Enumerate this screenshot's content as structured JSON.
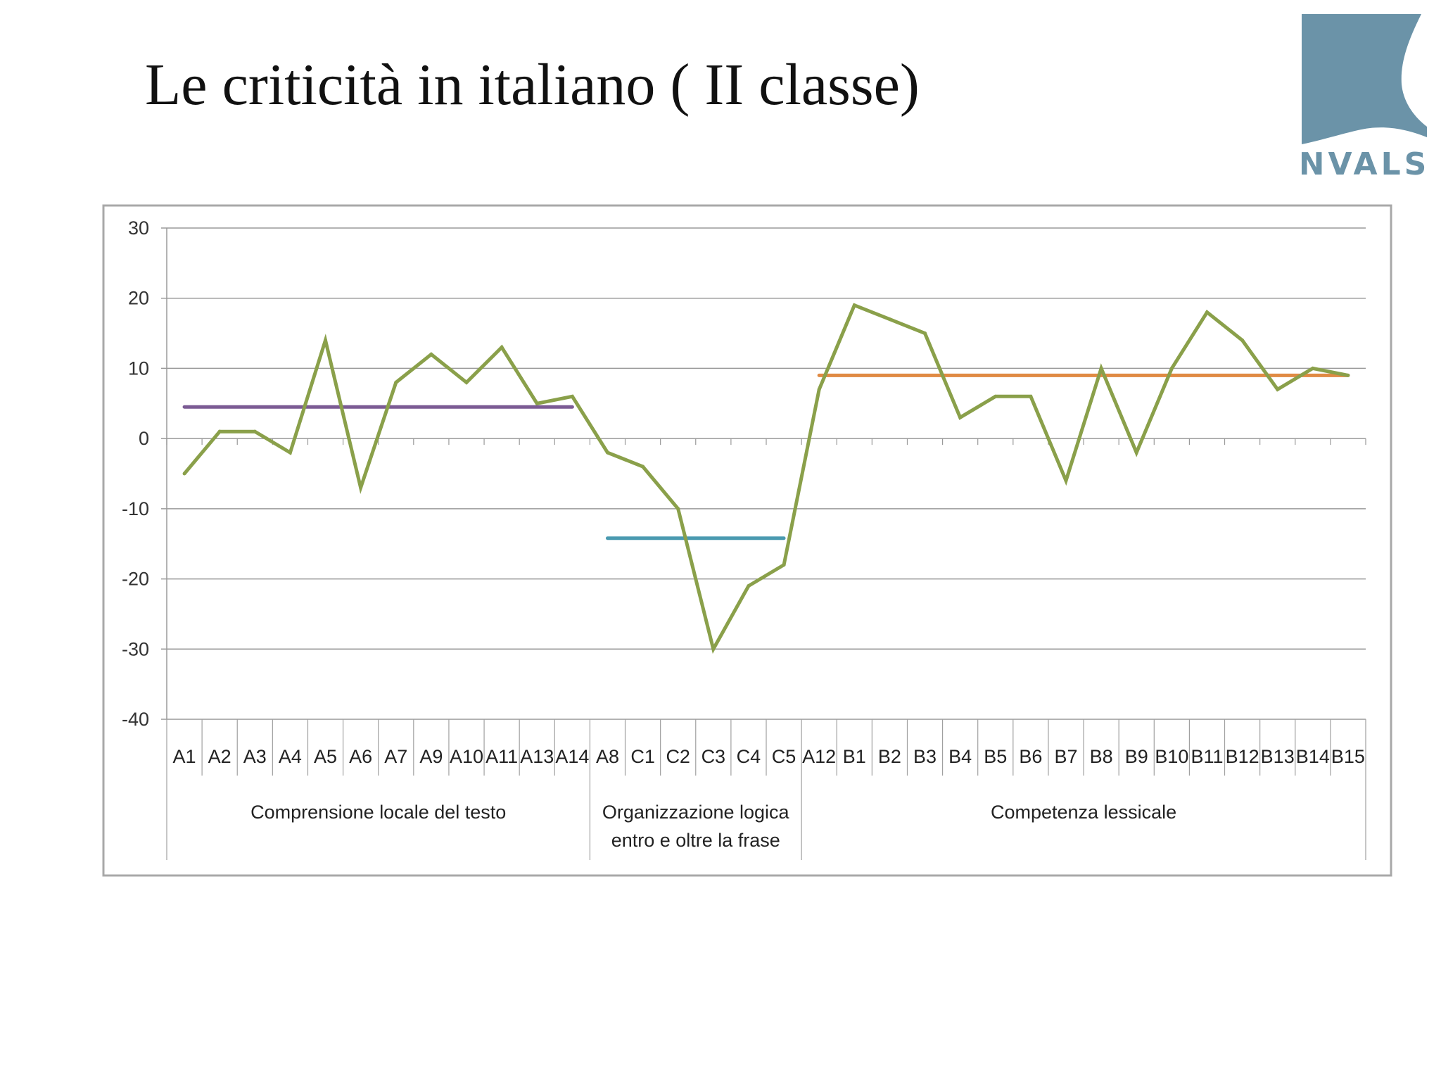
{
  "slide": {
    "title": "Le criticità in italiano ( II classe)",
    "logo_text": "INVALSI"
  },
  "colors": {
    "series": "#8aa04a",
    "mean_comprensione": "#7b5b94",
    "mean_organizzazione": "#4a9ab0",
    "mean_lessicale": "#e08a43",
    "logo": "#6b93a8",
    "grid": "#9a9a9a"
  },
  "chart_data": {
    "type": "line",
    "ylim": [
      -40,
      30
    ],
    "yticks": [
      30,
      20,
      10,
      0,
      -10,
      -20,
      -30,
      -40
    ],
    "grid": true,
    "categories": [
      "A1",
      "A2",
      "A3",
      "A4",
      "A5",
      "A6",
      "A7",
      "A9",
      "A10",
      "A11",
      "A13",
      "A14",
      "A8",
      "C1",
      "C2",
      "C3",
      "C4",
      "C5",
      "A12",
      "B1",
      "B2",
      "B3",
      "B4",
      "B5",
      "B6",
      "B7",
      "B8",
      "B9",
      "B10",
      "B11",
      "B12",
      "B13",
      "B14",
      "B15"
    ],
    "series": [
      {
        "values": [
          -5,
          1,
          1,
          -2,
          14,
          -7,
          8,
          12,
          8,
          13,
          5,
          6,
          -2,
          -4,
          -10,
          -30,
          -21,
          -18,
          7,
          19,
          17,
          15,
          3,
          6,
          6,
          -6,
          10,
          -2,
          10,
          18,
          14,
          7,
          10,
          9
        ]
      }
    ],
    "groups": [
      {
        "label_lines": [
          "Comprensione locale del testo"
        ],
        "start": 0,
        "end": 11,
        "mean": 4.5
      },
      {
        "label_lines": [
          "Organizzazione logica",
          "entro e oltre la frase"
        ],
        "start": 12,
        "end": 17,
        "mean": -14.2
      },
      {
        "label_lines": [
          "Competenza lessicale"
        ],
        "start": 18,
        "end": 33,
        "mean": 9
      }
    ]
  }
}
